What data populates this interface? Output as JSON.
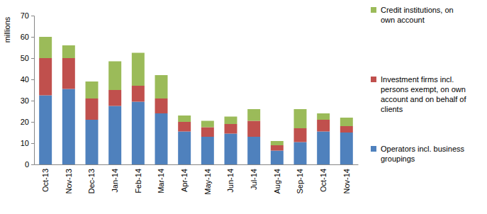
{
  "chart_data": {
    "type": "bar",
    "stacked": true,
    "legend": "right",
    "grid": false,
    "y_label": "millions",
    "categories": [
      "Oct-13",
      "Nov-13",
      "Dec-13",
      "Jan-14",
      "Feb-14",
      "Mar-14",
      "Apr-14",
      "May-14",
      "Jun-14",
      "Jul-14",
      "Aug-14",
      "Sep-14",
      "Oct-14",
      "Nov-14"
    ],
    "series": [
      {
        "name": "Operators incl. business groupings",
        "color": "#4f81bd",
        "values": [
          32.5,
          35.5,
          21,
          27.5,
          29.5,
          24,
          15.5,
          13,
          14.5,
          13,
          6.5,
          10.5,
          15.5,
          15
        ]
      },
      {
        "name": "Investment firms incl. persons exempt, on own account and on behalf of clients",
        "color": "#c0504d",
        "values": [
          17.5,
          14.5,
          10,
          7.5,
          7.5,
          7,
          4.5,
          4.5,
          4.5,
          7.5,
          2.5,
          6.5,
          5.5,
          3
        ]
      },
      {
        "name": "Credit institutions, on own account",
        "color": "#9bbb59",
        "values": [
          10,
          6,
          8,
          13.5,
          15.5,
          11,
          3,
          3,
          3.5,
          5.5,
          2,
          9,
          3,
          4
        ]
      }
    ],
    "ylim": [
      0,
      70
    ],
    "yticks": [
      0,
      10,
      20,
      30,
      40,
      50,
      60,
      70
    ]
  }
}
